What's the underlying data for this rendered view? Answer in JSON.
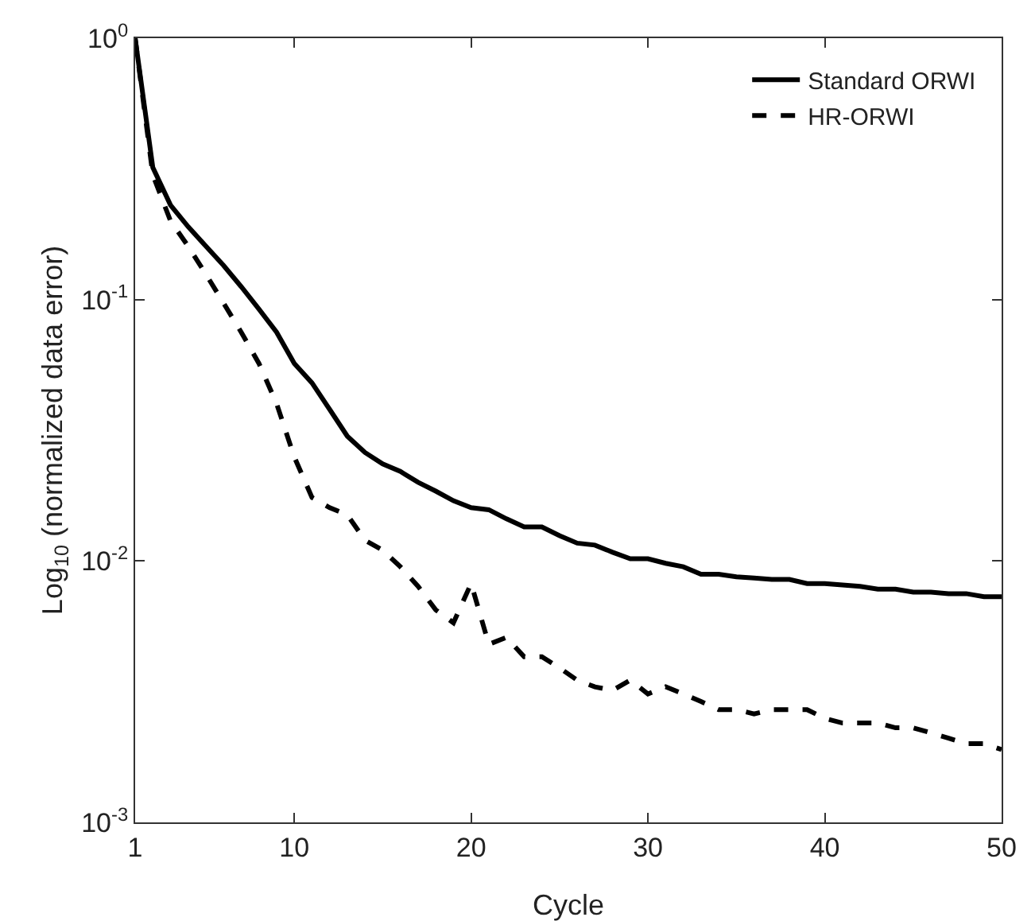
{
  "chart_data": {
    "type": "line",
    "xlabel": "Cycle",
    "ylabel": "Log$_{10}$ (normalized data error)",
    "log": "y",
    "grid": false,
    "legend": "top right",
    "marker": "none",
    "x": [
      1,
      2,
      3,
      4,
      5,
      6,
      7,
      8,
      9,
      10,
      11,
      12,
      13,
      14,
      15,
      16,
      17,
      18,
      19,
      20,
      21,
      22,
      23,
      24,
      25,
      26,
      27,
      28,
      29,
      30,
      31,
      32,
      33,
      34,
      35,
      36,
      37,
      38,
      39,
      40,
      41,
      42,
      43,
      44,
      45,
      46,
      47,
      48,
      49,
      50
    ],
    "xlim": [
      1,
      50
    ],
    "xticks": [
      1,
      10,
      20,
      30,
      40,
      50
    ],
    "ylim": [
      0.001,
      1
    ],
    "yticks": [
      {
        "value": 1,
        "label": "10$^{0}$"
      },
      {
        "value": 0.1,
        "label": "10$^{-1}$"
      },
      {
        "value": 0.01,
        "label": "10$^{-2}$"
      },
      {
        "value": 0.001,
        "label": "10$^{-3}$"
      }
    ],
    "series": [
      {
        "name": "Standard ORWI",
        "color": "#000000",
        "line_style": "solid",
        "values": [
          1,
          0.32,
          0.23,
          0.19,
          0.16,
          0.135,
          0.112,
          0.092,
          0.075,
          0.057,
          0.048,
          0.038,
          0.03,
          0.026,
          0.0235,
          0.022,
          0.02,
          0.0185,
          0.017,
          0.016,
          0.0157,
          0.0145,
          0.0135,
          0.0135,
          0.0125,
          0.0117,
          0.0115,
          0.0108,
          0.0102,
          0.0102,
          0.0098,
          0.0095,
          0.0089,
          0.0089,
          0.0087,
          0.0086,
          0.0085,
          0.0085,
          0.0082,
          0.0082,
          0.0081,
          0.008,
          0.0078,
          0.0078,
          0.0076,
          0.0076,
          0.0075,
          0.0075,
          0.0073,
          0.0073
        ]
      },
      {
        "name": "HR-ORWI",
        "color": "#000000",
        "line_style": "dashed",
        "values": [
          1,
          0.3,
          0.2,
          0.16,
          0.125,
          0.097,
          0.075,
          0.057,
          0.04,
          0.025,
          0.0175,
          0.016,
          0.015,
          0.012,
          0.011,
          0.0095,
          0.008,
          0.0065,
          0.0058,
          0.0082,
          0.0048,
          0.0051,
          0.0043,
          0.0043,
          0.0039,
          0.0035,
          0.0033,
          0.0032,
          0.0035,
          0.0031,
          0.0033,
          0.0031,
          0.0029,
          0.0027,
          0.0027,
          0.0026,
          0.0027,
          0.0027,
          0.0027,
          0.0025,
          0.0024,
          0.0024,
          0.0024,
          0.0023,
          0.0023,
          0.0022,
          0.0021,
          0.002,
          0.002,
          0.0019
        ]
      }
    ]
  }
}
